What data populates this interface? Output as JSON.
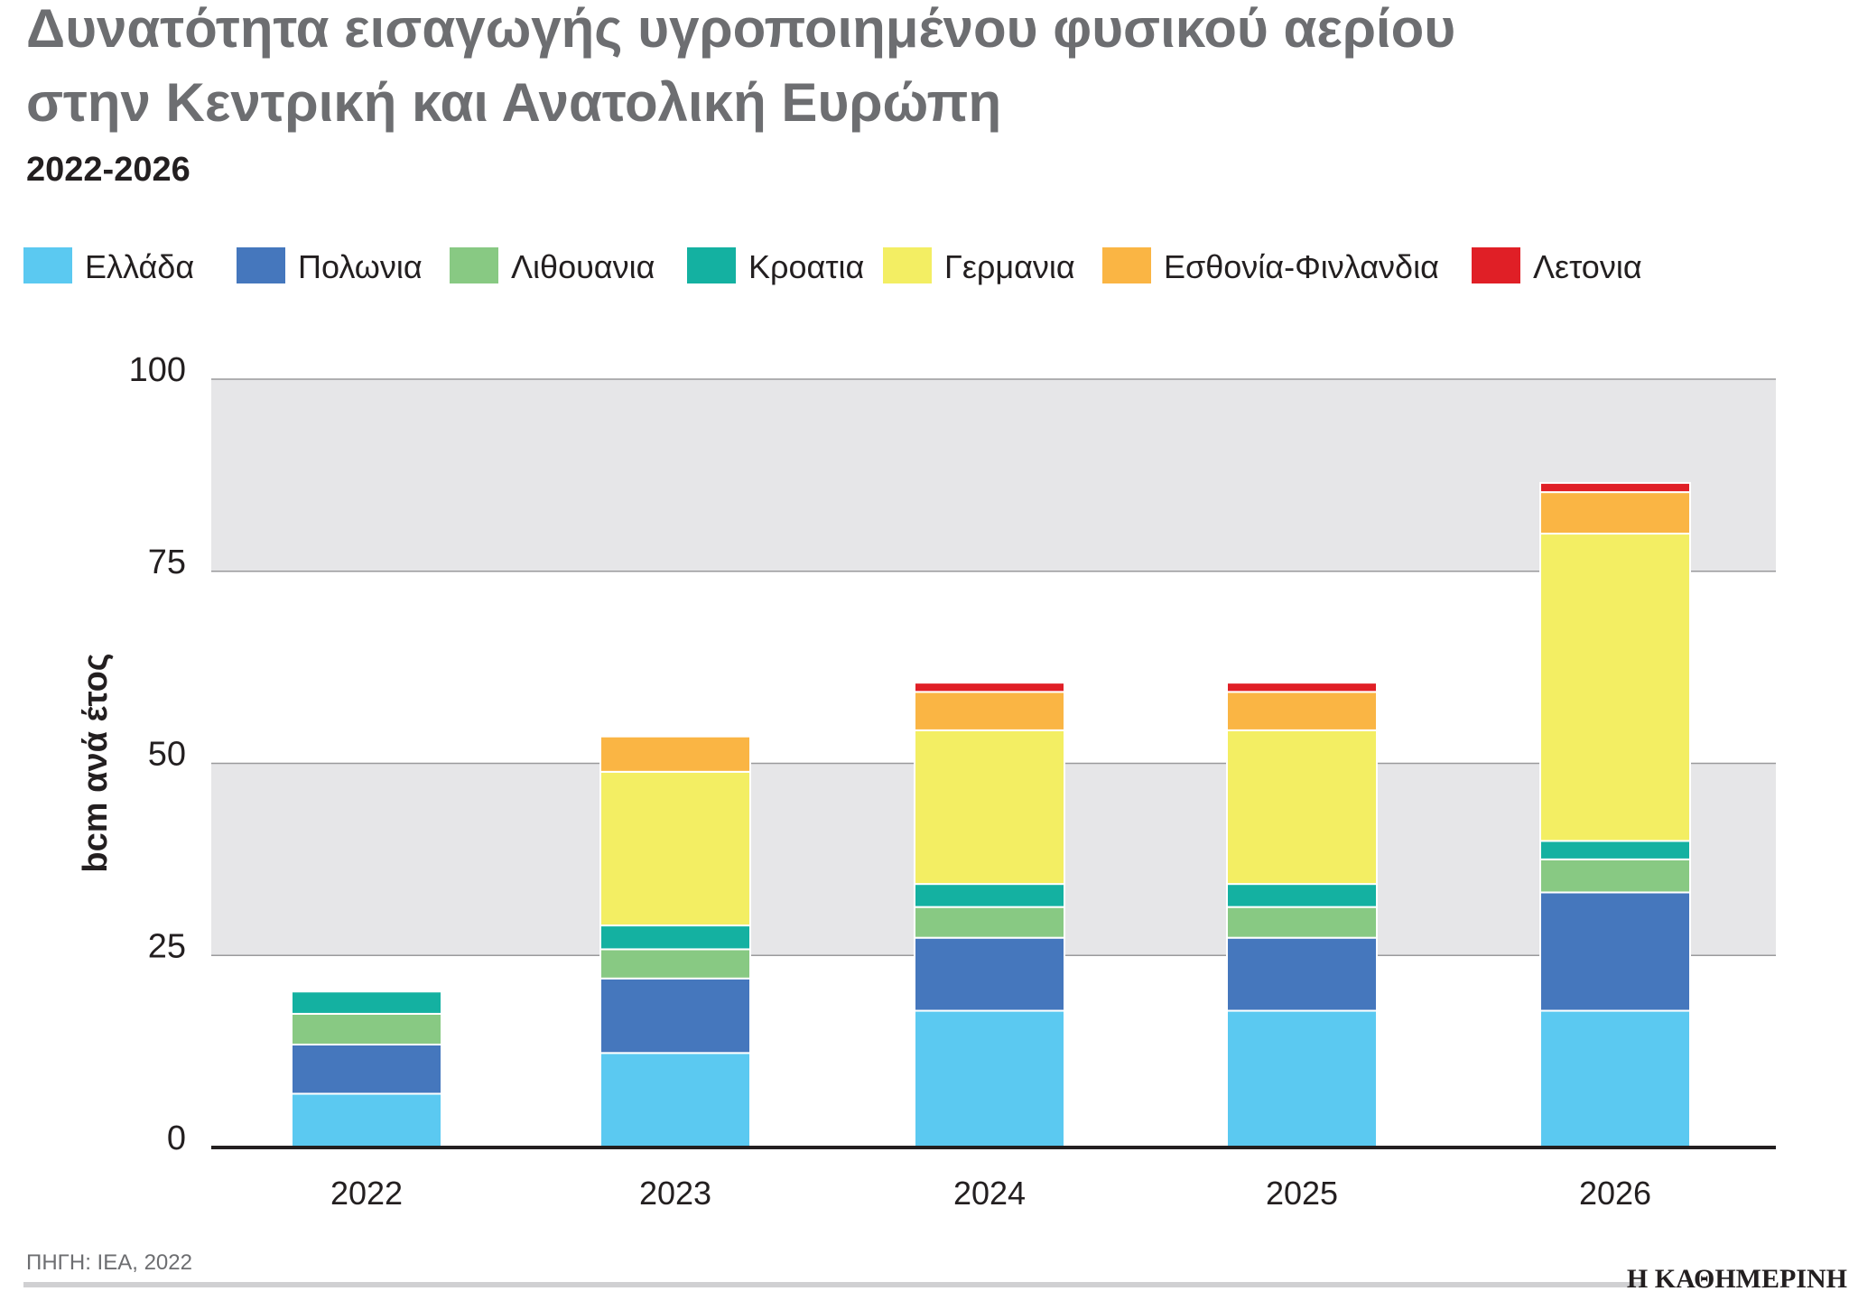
{
  "chart_data": {
    "type": "stacked_bar",
    "title_lines": [
      "Δυνατότητα εισαγωγής υγροποιημένου φυσικού αερίου",
      "στην Κεντρική και Ανατολική Ευρώπη"
    ],
    "subtitle": "2022-2026",
    "y_label": "bcm ανά έτος",
    "source": "ΠΗΓΗ: IEA, 2022",
    "brand": "Η ΚΑΘΗΜΕΡΙΝΗ",
    "categories": [
      "2022",
      "2023",
      "2024",
      "2025",
      "2026"
    ],
    "series": [
      {
        "name": "Ελλάδα",
        "color": "#5bc9f1",
        "values": [
          7,
          12.3,
          17.8,
          17.8,
          17.8
        ]
      },
      {
        "name": "Πολωνια",
        "color": "#4577bd",
        "values": [
          6.4,
          9.7,
          9.5,
          9.5,
          15.4
        ]
      },
      {
        "name": "Λιθουανια",
        "color": "#88c983",
        "values": [
          4,
          3.8,
          4,
          4,
          4.3
        ]
      },
      {
        "name": "Κροατια",
        "color": "#14b1a1",
        "values": [
          2.9,
          3.1,
          3,
          3,
          2.4
        ]
      },
      {
        "name": "Γερμανια",
        "color": "#f3ee63",
        "values": [
          0,
          20,
          20,
          20,
          40
        ]
      },
      {
        "name": "Εσθονία-Φινλανδια",
        "color": "#fab544",
        "values": [
          0,
          4.6,
          5,
          5,
          5.4
        ]
      },
      {
        "name": "Λετονια",
        "color": "#e01f26",
        "values": [
          0,
          0,
          1.2,
          1.2,
          1.2
        ]
      }
    ],
    "ylim": [
      0,
      100
    ],
    "yticks": [
      0,
      25,
      50,
      75,
      100
    ],
    "grid": true
  }
}
